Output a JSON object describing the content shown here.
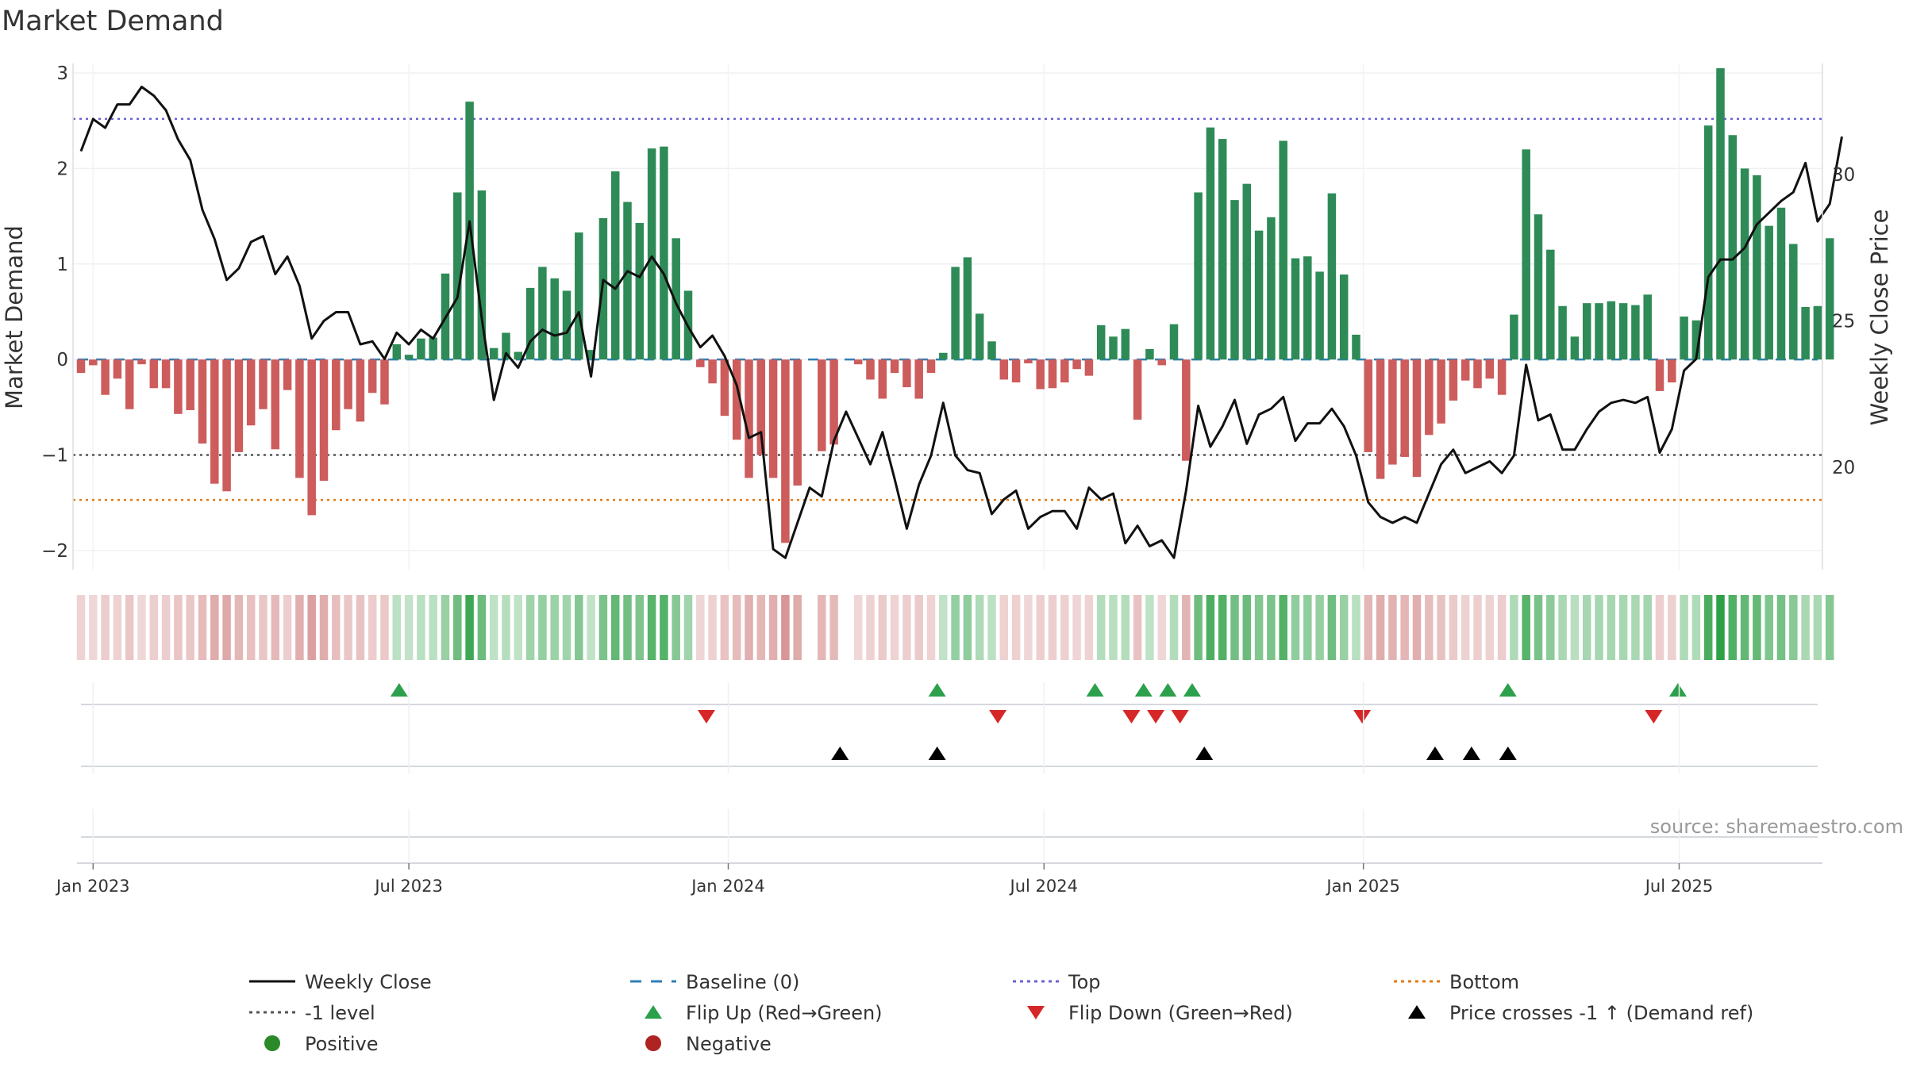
{
  "chart_data": {
    "type": "bar",
    "title": "Market Demand",
    "ylabel": "Market Demand",
    "y2label": "Weekly Close Price",
    "ylim": [
      -2.2,
      3.1
    ],
    "y2lim": [
      16.5,
      33.8
    ],
    "yticks": [
      -2,
      -1,
      0,
      1,
      2,
      3
    ],
    "y2ticks": [
      20,
      25,
      30
    ],
    "source": "source: sharemaestro.com",
    "x_ticks": [
      {
        "label": "Jan 2023",
        "week": 1
      },
      {
        "label": "Jul 2023",
        "week": 27
      },
      {
        "label": "Jan 2024",
        "week": 53.3
      },
      {
        "label": "Jul 2024",
        "week": 79.3
      },
      {
        "label": "Jan 2025",
        "week": 105.6
      },
      {
        "label": "Jul 2025",
        "week": 131.6
      }
    ],
    "reference_lines": {
      "top": 2.52,
      "minus_one": -1.0,
      "bottom": -1.47
    },
    "demand": [
      -0.14,
      -0.06,
      -0.37,
      -0.2,
      -0.52,
      -0.05,
      -0.3,
      -0.3,
      -0.57,
      -0.53,
      -0.88,
      -1.3,
      -1.38,
      -0.97,
      -0.69,
      -0.52,
      -0.94,
      -0.32,
      -1.24,
      -1.63,
      -1.27,
      -0.74,
      -0.52,
      -0.65,
      -0.35,
      -0.47,
      0.16,
      0.05,
      0.22,
      0.23,
      0.9,
      1.75,
      2.7,
      1.77,
      0.12,
      0.28,
      0.08,
      0.75,
      0.97,
      0.85,
      0.72,
      1.33,
      0.1,
      1.48,
      1.97,
      1.65,
      1.43,
      2.21,
      2.23,
      1.27,
      0.72,
      -0.08,
      -0.25,
      -0.59,
      -0.84,
      -1.24,
      -1.0,
      -1.24,
      -1.92,
      -1.32,
      0,
      -0.96,
      -0.89,
      0,
      -0.05,
      -0.21,
      -0.41,
      -0.14,
      -0.29,
      -0.41,
      -0.14,
      0.07,
      0.97,
      1.07,
      0.48,
      0.19,
      -0.21,
      -0.24,
      -0.04,
      -0.31,
      -0.3,
      -0.24,
      -0.1,
      -0.17,
      0.36,
      0.24,
      0.32,
      -0.63,
      0.11,
      -0.06,
      0.37,
      -1.06,
      1.75,
      2.43,
      2.31,
      1.67,
      1.84,
      1.35,
      1.49,
      2.29,
      1.06,
      1.08,
      0.92,
      1.74,
      0.89,
      0.26,
      -0.97,
      -1.25,
      -1.1,
      -1.02,
      -1.23,
      -0.79,
      -0.67,
      -0.43,
      -0.22,
      -0.3,
      -0.2,
      -0.37,
      0.47,
      2.2,
      1.52,
      1.15,
      0.56,
      0.24,
      0.59,
      0.59,
      0.61,
      0.59,
      0.57,
      0.68,
      -0.33,
      -0.24,
      0.45,
      0.41,
      2.45,
      3.05,
      2.35,
      2.0,
      1.93,
      1.4,
      1.59,
      1.21,
      0.55,
      0.56,
      1.27
    ],
    "weekly_close": [
      30.8,
      31.9,
      31.6,
      32.4,
      32.4,
      33.0,
      32.7,
      32.2,
      31.2,
      30.5,
      28.8,
      27.8,
      26.4,
      26.8,
      27.7,
      27.9,
      26.6,
      27.2,
      26.2,
      24.4,
      25.0,
      25.3,
      25.3,
      24.2,
      24.3,
      23.7,
      24.6,
      24.2,
      24.7,
      24.4,
      25.1,
      25.8,
      28.4,
      25.1,
      22.3,
      23.9,
      23.4,
      24.3,
      24.7,
      24.5,
      24.6,
      25.3,
      23.1,
      26.4,
      26.1,
      26.7,
      26.5,
      27.2,
      26.6,
      25.6,
      24.8,
      24.1,
      24.5,
      23.8,
      22.8,
      21.0,
      21.2,
      17.2,
      16.9,
      18.1,
      19.3,
      19.0,
      20.9,
      21.9,
      21.0,
      20.1,
      21.2,
      19.6,
      17.9,
      19.4,
      20.4,
      22.2,
      20.4,
      19.9,
      19.8,
      18.4,
      18.9,
      19.2,
      17.9,
      18.3,
      18.5,
      18.5,
      17.9,
      19.3,
      18.9,
      19.1,
      17.4,
      18.0,
      17.3,
      17.5,
      16.9,
      19.2,
      22.1,
      20.7,
      21.4,
      22.3,
      20.8,
      21.8,
      22.0,
      22.4,
      20.9,
      21.5,
      21.5,
      22.0,
      21.4,
      20.4,
      18.8,
      18.3,
      18.1,
      18.3,
      18.1,
      19.1,
      20.1,
      20.6,
      19.8,
      20.0,
      20.2,
      19.8,
      20.4,
      23.5,
      21.6,
      21.8,
      20.6,
      20.6,
      21.3,
      21.9,
      22.2,
      22.3,
      22.2,
      22.4,
      20.5,
      21.3,
      23.3,
      23.7,
      26.5,
      27.1,
      27.1,
      27.5,
      28.3,
      28.7,
      29.1,
      29.4,
      30.4,
      28.4,
      29.0,
      31.3
    ],
    "flip_up": [
      26.2,
      70.5,
      83.5,
      87.5,
      89.5,
      91.5,
      117.5,
      131.5
    ],
    "flip_down": [
      51.5,
      75.5,
      86.5,
      88.5,
      90.5,
      105.5,
      129.5
    ],
    "price_crosses": [
      62.5,
      70.5,
      92.5,
      111.5,
      114.5,
      117.5
    ],
    "legend": [
      {
        "label": "Weekly Close",
        "kind": "line",
        "color": "#111111"
      },
      {
        "label": "Baseline (0)",
        "kind": "dash",
        "color": "#2f7fb5"
      },
      {
        "label": "Top",
        "kind": "dot",
        "color": "#6b63d1"
      },
      {
        "label": "Bottom",
        "kind": "dot",
        "color": "#e07b12"
      },
      {
        "label": "-1 level",
        "kind": "dot",
        "color": "#555555"
      },
      {
        "label": "Flip Up (Red→Green)",
        "kind": "tri-up",
        "color": "#2ca04c"
      },
      {
        "label": "Flip Down (Green→Red)",
        "kind": "tri-down",
        "color": "#d62728"
      },
      {
        "label": "Price crosses -1 ↑ (Demand ref)",
        "kind": "tri-up",
        "color": "#000000"
      },
      {
        "label": "Positive",
        "kind": "circle",
        "color": "#2a8a2a"
      },
      {
        "label": "Negative",
        "kind": "circle",
        "color": "#b02323"
      }
    ],
    "colors": {
      "positive_bar": "#2e8b57",
      "negative_bar": "#cd5c5c",
      "line": "#111111",
      "baseline": "#2f7fb5",
      "top": "#6b63d1",
      "bottom": "#e07b12",
      "minus_one": "#555555",
      "source": "#999999"
    }
  }
}
